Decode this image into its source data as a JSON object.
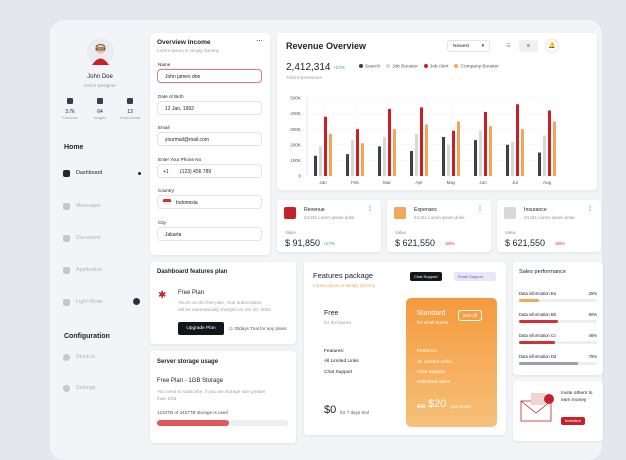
{
  "profile": {
    "name": "John Doe",
    "role": "UI/UX Designer",
    "stats": [
      {
        "value": "3.7k",
        "label": "Followers"
      },
      {
        "value": "64",
        "label": "Images"
      },
      {
        "value": "13",
        "label": "Testimonials"
      }
    ]
  },
  "menu": {
    "home": "Home",
    "items": [
      "Dashboard",
      "Messages",
      "Document",
      "Application",
      "Light Mode"
    ],
    "config": "Configuration",
    "config_items": [
      "Stack.io",
      "Settings"
    ]
  },
  "overview_income": {
    "title": "Overview Income",
    "subtitle": "Lorem Ipsum is simply dummy",
    "fields": [
      {
        "label": "Name",
        "value": "John james doe"
      },
      {
        "label": "Date of Birth",
        "value": "12 Jan, 1992"
      },
      {
        "label": "Email",
        "value": "yourmail@mail.com"
      },
      {
        "label": "Enter Your Phone No",
        "prefix": "+1",
        "value": "(123) 456 789"
      },
      {
        "label": "Country",
        "value": "Indonesia"
      },
      {
        "label": "City",
        "value": "Jakarta"
      }
    ]
  },
  "chart_data": {
    "type": "bar",
    "title": "Revenue Overview",
    "filter": "Newest",
    "total": "2,412,314",
    "change": "+17%",
    "total_label": "Total Impressions",
    "categories": [
      "Jan",
      "Feb",
      "Mar",
      "Apr",
      "May",
      "Jun",
      "Jul",
      "Aug"
    ],
    "series": [
      {
        "name": "Search",
        "color": "#3b3f4c",
        "values": [
          130000,
          140000,
          190000,
          160000,
          250000,
          230000,
          200000,
          150000
        ]
      },
      {
        "name": "Job Booster",
        "color": "#d6d8de",
        "values": [
          190000,
          230000,
          250000,
          270000,
          200000,
          290000,
          220000,
          260000
        ]
      },
      {
        "name": "Job Alert",
        "color": "#c62129",
        "values": [
          380000,
          300000,
          430000,
          440000,
          290000,
          410000,
          460000,
          420000
        ]
      },
      {
        "name": "Company Booster",
        "color": "#f2a65a",
        "values": [
          270000,
          210000,
          300000,
          330000,
          350000,
          320000,
          300000,
          350000
        ]
      }
    ],
    "ylim": [
      0,
      500000
    ],
    "yticks": [
      {
        "value": 0,
        "label": "0"
      },
      {
        "value": 100000,
        "label": "100K"
      },
      {
        "value": 200000,
        "label": "200K"
      },
      {
        "value": 300000,
        "label": "300K"
      },
      {
        "value": 400000,
        "label": "400K"
      },
      {
        "value": 500000,
        "label": "500K"
      }
    ],
    "grid": true
  },
  "stat_cards": [
    {
      "title": "Revenue",
      "subtitle": "24,211 Lorem ipsum dolor",
      "value_label": "Value",
      "value": "$ 91,850",
      "change": "+17%"
    },
    {
      "title": "Expenses",
      "subtitle": "24,211 Lorem ipsum dolor",
      "value_label": "Value",
      "value": "$ 621,550",
      "change": "-28%"
    },
    {
      "title": "Insurance",
      "subtitle": "24,211 Lorem ipsum dolor",
      "value_label": "Value",
      "value": "$ 621,550",
      "change": "-28%"
    }
  ],
  "plan": {
    "title": "Dashboard features plan",
    "name": "Free Plan",
    "text1": "You're on the free plan, Your subscription",
    "text2": "will be automatically charged on Oct 30, 2022",
    "button": "Upgrade Plan",
    "trial": "30days Trial for any plans"
  },
  "storage": {
    "title": "Server storage usage",
    "name": "Free Plan - 1GB Storage",
    "text1": "You need to subscribe, if you are storage size greater",
    "text2": "than 1GB",
    "usage": "1234TB of 4467TB storage is used"
  },
  "features": {
    "title": "Features package",
    "subtitle": "Lorem Ipsum is simply dummy",
    "tags": [
      "Chat Support",
      "Email Support"
    ],
    "free": {
      "name": "Free",
      "desc": "for the basics",
      "features_label": "Features:",
      "features": [
        "All Limited Links",
        "Chat Support"
      ],
      "price": "$0",
      "price_note": "for 7 days trial"
    },
    "standard": {
      "name": "Standard",
      "desc": "for small teams",
      "badge": "50% off",
      "features_label": "Features:",
      "features": [
        "All Limited Links",
        "Chat Support",
        "Unlimited users"
      ],
      "old_price": "$40",
      "price": "$20",
      "price_note": "per month"
    }
  },
  "sales": {
    "title": "Sales performance",
    "rows": [
      {
        "label": "Data information Ea",
        "value": 25,
        "value_label": "25%",
        "color": "#f2a65a"
      },
      {
        "label": "Data information Bb",
        "value": 50,
        "value_label": "50%",
        "color": "#d0303a"
      },
      {
        "label": "Data information Cc",
        "value": 46,
        "value_label": "46%",
        "color": "#d0303a"
      },
      {
        "label": "Data information Dd",
        "value": 75,
        "value_label": "75%",
        "color": "#9aa0ab"
      }
    ]
  },
  "invite": {
    "title1": "Invite others to",
    "title2": "earn money",
    "button": "Invitation"
  }
}
